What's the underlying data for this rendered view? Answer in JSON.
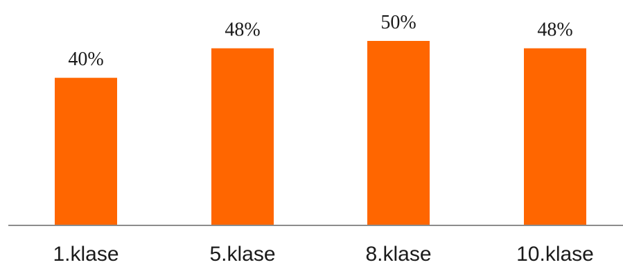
{
  "chart_data": {
    "type": "bar",
    "categories": [
      "1.klase",
      "5.klase",
      "8.klase",
      "10.klase"
    ],
    "values": [
      40,
      48,
      50,
      48
    ],
    "data_labels": [
      "40%",
      "48%",
      "50%",
      "48%"
    ],
    "ylim": [
      0,
      55
    ],
    "grid": false,
    "legend": "none",
    "bar_color": "#ff6600",
    "axis_color": "#8c8c8c"
  }
}
